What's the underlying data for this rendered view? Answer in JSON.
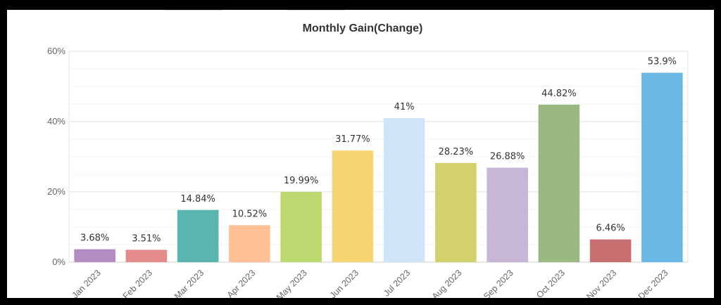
{
  "chart_data": {
    "type": "bar",
    "title": "Monthly Gain(Change)",
    "xlabel": "",
    "ylabel": "",
    "ylim": [
      0,
      60
    ],
    "yticks": [
      0,
      20,
      40,
      60
    ],
    "ytick_labels": [
      "0%",
      "20%",
      "40%",
      "60%"
    ],
    "grid": true,
    "legend": "none",
    "categories": [
      "Jan 2023",
      "Feb 2023",
      "Mar 2023",
      "Apr 2023",
      "May 2023",
      "Jun 2023",
      "Jul 2023",
      "Aug 2023",
      "Sep 2023",
      "Oct 2023",
      "Nov 2023",
      "Dec 2023"
    ],
    "values": [
      3.68,
      3.51,
      14.84,
      10.52,
      19.99,
      31.77,
      41,
      28.23,
      26.88,
      44.82,
      6.46,
      53.9
    ],
    "data_labels": [
      "3.68%",
      "3.51%",
      "14.84%",
      "10.52%",
      "19.99%",
      "31.77%",
      "41%",
      "28.23%",
      "26.88%",
      "44.82%",
      "6.46%",
      "53.9%"
    ],
    "colors": [
      "#b38cc4",
      "#e58a8a",
      "#5ab5b0",
      "#ffc095",
      "#bcd96f",
      "#f7d574",
      "#cfe5f7",
      "#d3d06e",
      "#c7b6d6",
      "#9cb882",
      "#c96f72",
      "#6ab8e4"
    ]
  }
}
